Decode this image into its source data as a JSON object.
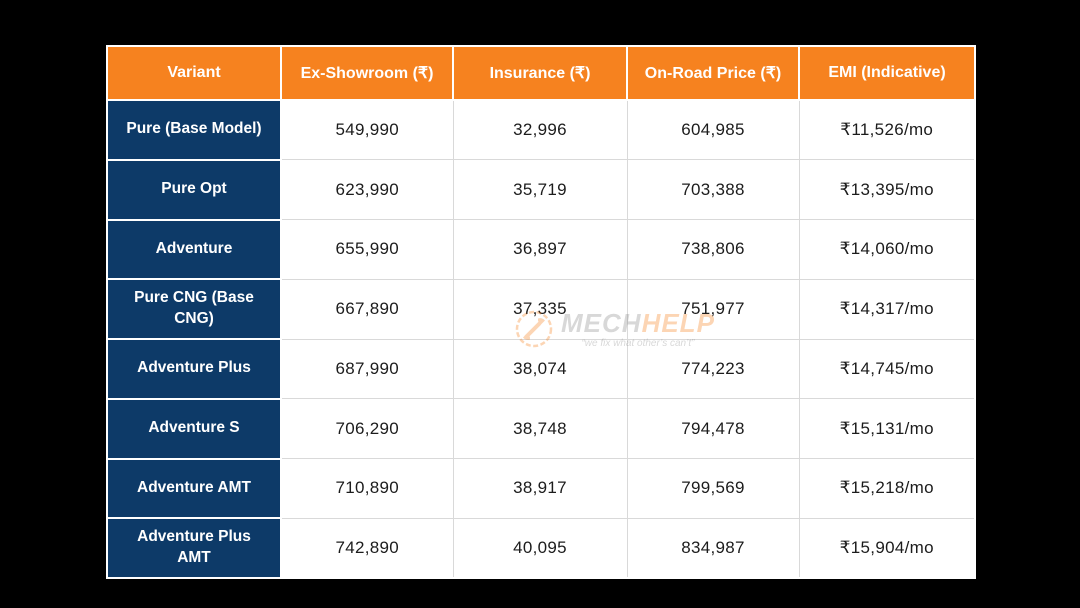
{
  "page": {
    "background": "#000000"
  },
  "watermark": {
    "brand_part1": "MECH",
    "brand_part2": "HELP",
    "tagline": "“we fix what other’s can’t”",
    "icon": "wrench-badge-icon",
    "colors": {
      "brand_gray": "#8A8A8A",
      "brand_orange": "#F6821F"
    }
  },
  "chart_data": {
    "type": "table",
    "title": "",
    "columns": [
      {
        "label": "Variant"
      },
      {
        "label": "Ex-Showroom (₹)"
      },
      {
        "label": "Insurance (₹)"
      },
      {
        "label": "On-Road Price (₹)"
      },
      {
        "label": "EMI (Indicative)"
      }
    ],
    "rows": [
      {
        "variant": "Pure (Base Model)",
        "ex_showroom": "549,990",
        "insurance": "32,996",
        "on_road": "604,985",
        "emi": "₹11,526/mo"
      },
      {
        "variant": "Pure Opt",
        "ex_showroom": "623,990",
        "insurance": "35,719",
        "on_road": "703,388",
        "emi": "₹13,395/mo"
      },
      {
        "variant": "Adventure",
        "ex_showroom": "655,990",
        "insurance": "36,897",
        "on_road": "738,806",
        "emi": "₹14,060/mo"
      },
      {
        "variant": "Pure CNG (Base CNG)",
        "ex_showroom": "667,890",
        "insurance": "37,335",
        "on_road": "751,977",
        "emi": "₹14,317/mo"
      },
      {
        "variant": "Adventure Plus",
        "ex_showroom": "687,990",
        "insurance": "38,074",
        "on_road": "774,223",
        "emi": "₹14,745/mo"
      },
      {
        "variant": "Adventure S",
        "ex_showroom": "706,290",
        "insurance": "38,748",
        "on_road": "794,478",
        "emi": "₹15,131/mo"
      },
      {
        "variant": "Adventure AMT",
        "ex_showroom": "710,890",
        "insurance": "38,917",
        "on_road": "799,569",
        "emi": "₹15,218/mo"
      },
      {
        "variant": "Adventure Plus AMT",
        "ex_showroom": "742,890",
        "insurance": "40,095",
        "on_road": "834,987",
        "emi": "₹15,904/mo"
      }
    ],
    "colors": {
      "header_bg": "#F6821F",
      "header_text": "#FFFFFF",
      "variant_bg": "#0D3A68",
      "variant_text": "#FFFFFF",
      "cell_bg": "#FFFFFF",
      "cell_text": "#1C1C1C",
      "divider": "#D9D9D9",
      "table_border": "#FFFFFF",
      "page_bg": "#000000"
    }
  }
}
